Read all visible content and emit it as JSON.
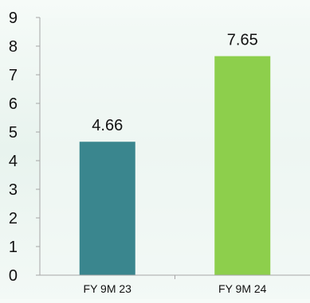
{
  "chart_data": {
    "type": "bar",
    "title": "",
    "xlabel": "",
    "ylabel": "",
    "categories": [
      "FY 9M 23",
      "FY 9M 24"
    ],
    "values": [
      4.66,
      7.65
    ],
    "value_labels": [
      "4.66",
      "7.65"
    ],
    "y_ticks": [
      "0",
      "1",
      "2",
      "3",
      "4",
      "5",
      "6",
      "7",
      "8",
      "9"
    ],
    "ylim": [
      0,
      9
    ],
    "grid": false,
    "legend": "none",
    "bar_colors": [
      "#3a868e",
      "#8dcf4c"
    ],
    "axis_color": "#a6a6a6",
    "text_color": "#111111"
  }
}
